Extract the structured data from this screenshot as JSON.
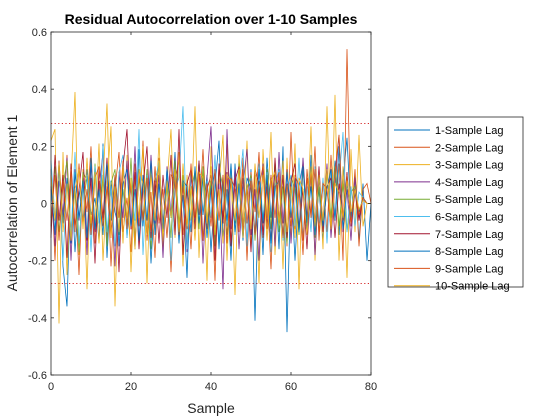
{
  "chart_data": {
    "type": "line",
    "title": "Residual Autocorrelation over 1-10 Samples",
    "xlabel": "Sample",
    "ylabel": "Autocorrelation of Element 1",
    "xlim": [
      0,
      80
    ],
    "ylim": [
      -0.6,
      0.6
    ],
    "xticks": [
      "0",
      "20",
      "40",
      "60",
      "80"
    ],
    "yticks": [
      "-0.6",
      "-0.4",
      "-0.2",
      "0",
      "0.2",
      "0.4",
      "0.6"
    ],
    "grid": false,
    "legend_position": "outside-right",
    "confidence_bounds": {
      "upper": 0.28,
      "lower": -0.28,
      "color": "#d62728",
      "style": "dotted"
    },
    "x": [
      0,
      1,
      2,
      3,
      4,
      5,
      6,
      7,
      8,
      9,
      10,
      11,
      12,
      13,
      14,
      15,
      16,
      17,
      18,
      19,
      20,
      21,
      22,
      23,
      24,
      25,
      26,
      27,
      28,
      29,
      30,
      31,
      32,
      33,
      34,
      35,
      36,
      37,
      38,
      39,
      40,
      41,
      42,
      43,
      44,
      45,
      46,
      47,
      48,
      49,
      50,
      51,
      52,
      53,
      54,
      55,
      56,
      57,
      58,
      59,
      60,
      61,
      62,
      63,
      64,
      65,
      66,
      67,
      68,
      69,
      70,
      71,
      72,
      73,
      74,
      75,
      76,
      77,
      78,
      79,
      80
    ],
    "series": [
      {
        "name": "1-Sample Lag",
        "color": "#0072BD",
        "values": [
          0.05,
          -0.11,
          0.15,
          -0.22,
          -0.36,
          0.12,
          -0.17,
          0.05,
          -0.06,
          0.12,
          -0.04,
          0.02,
          -0.13,
          0.21,
          -0.19,
          0.08,
          -0.03,
          -0.09,
          0.14,
          -0.12,
          0.07,
          -0.16,
          0.19,
          -0.08,
          0.11,
          -0.21,
          0.04,
          0.13,
          -0.15,
          0.09,
          -0.05,
          0.18,
          -0.11,
          0.03,
          -0.26,
          0.12,
          -0.08,
          0.15,
          -0.04,
          0.1,
          -0.17,
          0.06,
          0.22,
          -0.12,
          0.05,
          -0.2,
          0.14,
          -0.07,
          0.09,
          -0.14,
          0.12,
          -0.41,
          0.08,
          -0.18,
          0.16,
          -0.05,
          0.11,
          -0.16,
          0.2,
          -0.45,
          0.09,
          -0.2,
          0.06,
          0.14,
          -0.1,
          0.17,
          -0.08,
          0.05,
          -0.13,
          0.12,
          -0.06,
          0.15,
          -0.11,
          0.08,
          0.23,
          -0.05,
          0.1,
          -0.13,
          0.07,
          -0.2,
          0.0
        ]
      },
      {
        "name": "2-Sample Lag",
        "color": "#D95319",
        "values": [
          0.12,
          -0.2,
          0.15,
          -0.05,
          0.17,
          -0.12,
          0.06,
          -0.25,
          0.1,
          -0.03,
          0.2,
          -0.14,
          0.08,
          -0.06,
          0.13,
          -0.22,
          0.05,
          0.18,
          -0.1,
          0.02,
          -0.17,
          0.14,
          -0.08,
          0.22,
          -0.13,
          0.04,
          -0.19,
          0.16,
          -0.07,
          0.1,
          -0.24,
          0.08,
          0.15,
          -0.11,
          0.05,
          -0.16,
          0.12,
          -0.04,
          0.19,
          -0.09,
          0.07,
          -0.27,
          0.13,
          -0.05,
          0.21,
          -0.14,
          0.09,
          -0.08,
          0.16,
          -0.2,
          0.11,
          -0.03,
          0.18,
          -0.12,
          0.06,
          -0.23,
          0.14,
          -0.07,
          0.1,
          -0.15,
          0.25,
          -0.09,
          0.05,
          -0.18,
          0.12,
          -0.04,
          0.2,
          -0.13,
          0.08,
          -0.1,
          0.17,
          -0.06,
          0.14,
          -0.2,
          0.54,
          -0.08,
          0.12,
          -0.15,
          0.05,
          0.07,
          0.0
        ]
      },
      {
        "name": "3-Sample Lag",
        "color": "#EDB120",
        "values": [
          0.22,
          0.26,
          -0.42,
          0.18,
          -0.25,
          0.08,
          0.39,
          -0.18,
          0.12,
          -0.3,
          0.15,
          -0.08,
          0.21,
          -0.2,
          0.06,
          0.27,
          -0.36,
          0.11,
          -0.14,
          0.17,
          -0.24,
          0.09,
          -0.05,
          0.2,
          -0.28,
          0.14,
          -0.1,
          0.23,
          -0.16,
          0.07,
          0.26,
          -0.12,
          0.18,
          -0.22,
          0.1,
          -0.06,
          0.34,
          -0.19,
          0.13,
          -0.27,
          0.2,
          -0.1,
          0.06,
          0.24,
          -0.2,
          0.12,
          -0.32,
          0.17,
          -0.08,
          0.22,
          -0.15,
          0.1,
          -0.28,
          0.19,
          -0.05,
          0.25,
          -0.18,
          0.11,
          -0.23,
          0.16,
          -0.12,
          0.21,
          -0.3,
          0.14,
          -0.07,
          0.27,
          -0.2,
          0.1,
          -0.16,
          0.34,
          -0.11,
          0.38,
          -0.2,
          0.13,
          -0.26,
          0.19,
          -0.1,
          0.24,
          -0.08,
          0.0,
          0.0
        ]
      },
      {
        "name": "4-Sample Lag",
        "color": "#7E2F8E",
        "values": [
          0.1,
          -0.15,
          0.08,
          -0.04,
          0.16,
          -0.2,
          0.12,
          -0.06,
          0.09,
          -0.18,
          0.14,
          -0.1,
          0.05,
          0.18,
          -0.13,
          0.07,
          -0.22,
          0.11,
          -0.05,
          0.15,
          -0.09,
          0.2,
          -0.14,
          0.06,
          -0.11,
          0.17,
          -0.07,
          0.1,
          -0.19,
          0.13,
          -0.04,
          0.16,
          -0.12,
          0.08,
          -0.17,
          0.1,
          -0.06,
          0.14,
          -0.21,
          0.09,
          0.27,
          -0.13,
          0.07,
          -0.3,
          0.26,
          -0.09,
          0.12,
          -0.16,
          0.06,
          0.19,
          -0.11,
          0.05,
          -0.2,
          0.14,
          -0.08,
          0.1,
          -0.15,
          0.18,
          -0.07,
          0.12,
          -0.14,
          0.08,
          -0.1,
          0.16,
          -0.05,
          0.11,
          -0.18,
          0.09,
          -0.06,
          0.14,
          -0.12,
          0.07,
          0.24,
          -0.1,
          0.05,
          -0.13,
          0.09,
          -0.05,
          0.02,
          0.0,
          0.0
        ]
      },
      {
        "name": "5-Sample Lag",
        "color": "#77AC30",
        "values": [
          -0.08,
          0.13,
          -0.1,
          0.06,
          0.15,
          -0.12,
          0.05,
          -0.17,
          0.11,
          0.08,
          -0.09,
          0.14,
          -0.06,
          0.1,
          -0.15,
          0.07,
          0.12,
          -0.11,
          0.05,
          -0.08,
          0.16,
          -0.13,
          0.09,
          -0.05,
          0.12,
          -0.16,
          0.08,
          0.14,
          -0.1,
          0.06,
          -0.12,
          0.15,
          -0.07,
          0.1,
          -0.14,
          0.05,
          0.11,
          -0.09,
          0.13,
          -0.06,
          0.08,
          -0.15,
          0.12,
          0.06,
          -0.11,
          0.09,
          -0.07,
          0.14,
          -0.12,
          0.05,
          0.1,
          -0.13,
          0.07,
          -0.06,
          0.12,
          -0.09,
          0.15,
          -0.1,
          0.06,
          -0.14,
          0.09,
          0.05,
          -0.11,
          0.13,
          -0.07,
          0.1,
          -0.12,
          0.06,
          -0.09,
          0.11,
          -0.05,
          0.13,
          -0.08,
          0.07,
          -0.1,
          0.04,
          0.06,
          -0.03,
          0.02,
          0.0,
          0.0
        ]
      },
      {
        "name": "6-Sample Lag",
        "color": "#4DBEEE",
        "values": [
          0.15,
          -0.05,
          0.12,
          -0.2,
          0.08,
          -0.11,
          0.18,
          -0.14,
          0.05,
          0.1,
          -0.17,
          0.13,
          -0.07,
          0.2,
          -0.1,
          0.06,
          -0.15,
          0.11,
          0.17,
          -0.12,
          0.08,
          -0.06,
          0.26,
          -0.18,
          0.1,
          -0.13,
          0.07,
          0.15,
          -0.09,
          0.12,
          -0.2,
          0.05,
          0.09,
          0.34,
          -0.16,
          0.11,
          -0.07,
          0.14,
          -0.12,
          0.08,
          -0.05,
          0.17,
          -0.14,
          0.1,
          -0.08,
          0.13,
          -0.11,
          0.06,
          0.19,
          -0.15,
          0.09,
          -0.1,
          0.14,
          -0.06,
          0.11,
          -0.17,
          0.07,
          0.12,
          -0.13,
          0.05,
          0.1,
          -0.08,
          0.16,
          -0.12,
          0.06,
          -0.1,
          0.13,
          -0.07,
          0.09,
          -0.14,
          0.11,
          -0.05,
          0.08,
          0.25,
          -0.1,
          0.06,
          -0.08,
          0.04,
          0.02,
          0.0,
          0.0
        ]
      },
      {
        "name": "7-Sample Lag",
        "color": "#A2142F",
        "values": [
          -0.12,
          0.17,
          -0.06,
          0.1,
          -0.19,
          0.14,
          -0.08,
          0.05,
          0.18,
          -0.13,
          0.09,
          -0.21,
          0.12,
          -0.05,
          0.16,
          -0.1,
          0.07,
          -0.24,
          0.13,
          0.26,
          -0.09,
          0.11,
          -0.16,
          0.06,
          0.2,
          -0.12,
          0.08,
          -0.14,
          0.1,
          -0.05,
          0.17,
          -0.11,
          0.26,
          -0.18,
          0.07,
          0.12,
          -0.09,
          0.15,
          -0.13,
          0.05,
          0.1,
          -0.2,
          0.14,
          -0.07,
          0.11,
          -0.15,
          0.08,
          0.13,
          -0.1,
          0.06,
          -0.17,
          0.12,
          0.07,
          -0.11,
          0.09,
          -0.14,
          0.16,
          -0.06,
          0.1,
          -0.12,
          0.08,
          0.14,
          -0.09,
          0.05,
          -0.16,
          0.11,
          -0.07,
          0.13,
          -0.1,
          0.06,
          0.09,
          -0.12,
          0.07,
          -0.05,
          0.11,
          -0.08,
          0.04,
          -0.06,
          0.02,
          0.0,
          0.0
        ]
      },
      {
        "name": "8-Sample Lag",
        "color": "#0072BD",
        "values": [
          0.06,
          -0.1,
          0.13,
          -0.07,
          0.09,
          -0.14,
          0.11,
          -0.05,
          0.08,
          -0.12,
          0.16,
          -0.09,
          0.05,
          -0.11,
          0.14,
          -0.06,
          0.1,
          -0.15,
          0.07,
          0.12,
          -0.08,
          0.05,
          -0.13,
          0.1,
          -0.06,
          0.15,
          -0.11,
          0.07,
          -0.09,
          0.12,
          -0.05,
          0.1,
          -0.14,
          0.08,
          0.06,
          -0.1,
          0.13,
          -0.07,
          0.09,
          -0.12,
          0.05,
          0.11,
          -0.16,
          0.08,
          -0.06,
          0.14,
          -0.1,
          0.07,
          -0.13,
          0.09,
          0.05,
          -0.11,
          0.12,
          -0.07,
          0.1,
          -0.14,
          0.06,
          0.08,
          -0.12,
          0.11,
          -0.05,
          0.09,
          -0.1,
          0.13,
          -0.07,
          0.06,
          -0.11,
          0.1,
          -0.08,
          0.05,
          0.12,
          -0.06,
          0.2,
          -0.09,
          0.07,
          -0.05,
          0.04,
          -0.03,
          0.02,
          0.0,
          0.0
        ]
      },
      {
        "name": "9-Sample Lag",
        "color": "#D95319",
        "values": [
          -0.05,
          0.1,
          -0.13,
          0.08,
          -0.06,
          0.12,
          -0.1,
          0.14,
          -0.07,
          0.05,
          -0.11,
          0.09,
          0.13,
          -0.08,
          0.06,
          -0.12,
          0.1,
          -0.05,
          0.15,
          -0.09,
          0.07,
          -0.14,
          0.11,
          -0.06,
          0.09,
          -0.1,
          0.13,
          -0.07,
          0.05,
          -0.12,
          0.1,
          0.08,
          -0.11,
          0.06,
          -0.09,
          0.14,
          -0.05,
          0.11,
          -0.13,
          0.07,
          -0.08,
          0.12,
          -0.06,
          0.1,
          -0.14,
          0.09,
          0.05,
          -0.1,
          0.12,
          -0.07,
          0.08,
          -0.11,
          0.06,
          0.13,
          -0.09,
          0.1,
          -0.05,
          0.11,
          -0.12,
          0.07,
          -0.08,
          0.1,
          0.06,
          -0.13,
          0.09,
          -0.05,
          0.12,
          -0.1,
          0.07,
          0.05,
          -0.09,
          0.11,
          0.24,
          -0.06,
          0.1,
          -0.07,
          0.05,
          -0.04,
          0.02,
          0.0,
          0.0
        ]
      },
      {
        "name": "10-Sample Lag",
        "color": "#EDB120",
        "values": [
          0.1,
          -0.06,
          0.14,
          -0.1,
          0.07,
          -0.13,
          0.05,
          0.12,
          -0.09,
          0.16,
          -0.07,
          0.11,
          -0.14,
          0.08,
          0.35,
          -0.12,
          0.06,
          -0.1,
          0.13,
          -0.05,
          0.09,
          -0.16,
          0.12,
          0.07,
          -0.11,
          0.1,
          -0.06,
          0.15,
          -0.13,
          0.08,
          -0.05,
          0.12,
          -0.1,
          0.14,
          -0.08,
          0.06,
          -0.13,
          0.11,
          0.09,
          -0.07,
          0.13,
          -0.11,
          0.05,
          -0.14,
          0.1,
          0.08,
          -0.06,
          0.12,
          -0.12,
          0.07,
          -0.09,
          0.14,
          -0.05,
          0.1,
          -0.13,
          0.08,
          0.11,
          -0.07,
          0.15,
          -0.1,
          0.06,
          -0.12,
          0.09,
          0.05,
          -0.11,
          0.13,
          -0.08,
          0.1,
          -0.06,
          0.12,
          -0.09,
          0.07,
          0.04,
          -0.05,
          0.08,
          -0.03,
          0.05,
          -0.02,
          0.01,
          0.0,
          0.0
        ]
      }
    ]
  }
}
